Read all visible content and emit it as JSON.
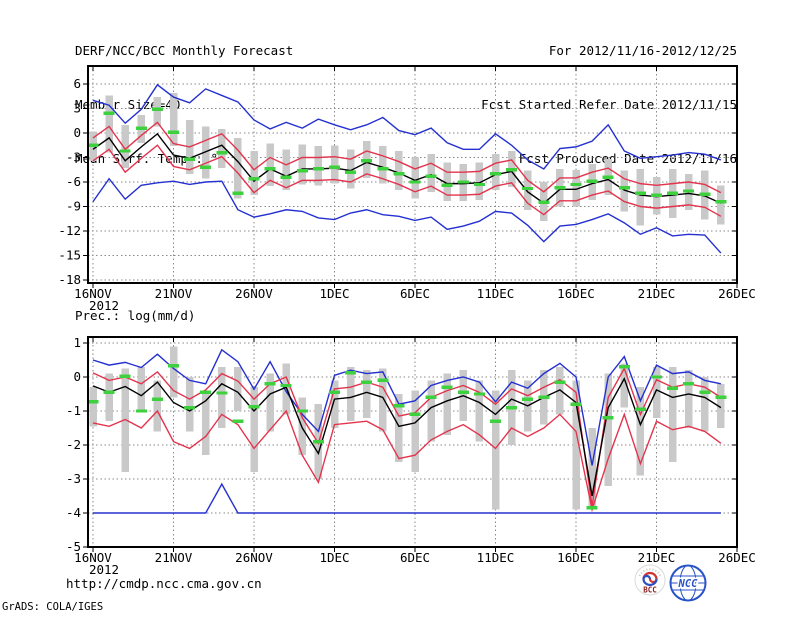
{
  "header": {
    "left": [
      "DERF/NCC/BCC Monthly Forecast",
      "Member Size=40",
      "Mean Surf. Temp.: °C"
    ],
    "right": [
      "For 2012/11/16-2012/12/25",
      "Fcst Started Refer Date 2012/11/15",
      "Fcst Produced Date 2012/11/16"
    ]
  },
  "footer": {
    "url": "http://cmdp.ncc.cma.gov.cn",
    "credit": "GrADS: COLA/IGES"
  },
  "logos": {
    "bcc": "BCC",
    "ncc": "NCC"
  },
  "colors": {
    "extreme_line": "#2430d0",
    "spread_line": "#e3344e",
    "mean_line": "#000000",
    "median_dash": "#3ed13e",
    "member_bar": "#c9c9c9",
    "grid": "#8a8a8a",
    "frame": "#000000"
  },
  "chart_data": [
    {
      "type": "line",
      "name": "mean-surface-temperature",
      "title": "Mean Surf. Temp.: °C",
      "x_tick_labels": [
        "16NOV",
        "21NOV",
        "26NOV",
        "1DEC",
        "6DEC",
        "11DEC",
        "16DEC",
        "21DEC",
        "26DEC"
      ],
      "x_tick_positions": [
        0,
        5,
        10,
        15,
        20,
        25,
        30,
        35,
        40
      ],
      "x_year_label": "2012",
      "n_days": 40,
      "y_ticks": [
        6,
        3,
        0,
        -3,
        -6,
        -9,
        -12,
        -15,
        -18
      ],
      "ylim": [
        -18.4,
        8.2
      ],
      "grid": true,
      "legend_position": "none",
      "series": [
        {
          "name": "ensemble-max",
          "color": "#2430d0",
          "values": [
            4.0,
            3.4,
            1.2,
            2.9,
            5.9,
            4.4,
            3.7,
            5.4,
            4.6,
            3.8,
            1.6,
            0.5,
            1.3,
            0.6,
            1.7,
            1.0,
            0.4,
            1.0,
            1.9,
            0.3,
            -0.2,
            0.6,
            -1.2,
            -2.0,
            -2.0,
            -0.1,
            -1.5,
            -3.3,
            -4.4,
            -1.9,
            -1.7,
            -1.0,
            1.0,
            -2.2,
            -3.1,
            -2.9,
            -2.7,
            -2.4,
            -2.6,
            -3.3
          ]
        },
        {
          "name": "upper-spread",
          "color": "#e3344e",
          "values": [
            -0.6,
            0.8,
            -2.0,
            -0.3,
            1.3,
            -1.3,
            -1.7,
            -0.9,
            -0.1,
            -2.1,
            -4.5,
            -3.0,
            -3.9,
            -3.0,
            -3.0,
            -2.9,
            -3.2,
            -2.2,
            -2.8,
            -3.5,
            -4.4,
            -3.7,
            -4.8,
            -4.8,
            -4.7,
            -3.7,
            -3.3,
            -5.8,
            -7.2,
            -5.5,
            -5.5,
            -4.8,
            -4.3,
            -5.6,
            -6.2,
            -6.4,
            -6.2,
            -6.0,
            -6.3,
            -7.3
          ]
        },
        {
          "name": "ensemble-mean",
          "color": "#000000",
          "values": [
            -2.0,
            -0.6,
            -3.4,
            -1.7,
            -0.1,
            -2.7,
            -3.1,
            -2.3,
            -1.5,
            -3.5,
            -5.9,
            -4.4,
            -5.3,
            -4.4,
            -4.4,
            -4.3,
            -4.6,
            -3.6,
            -4.2,
            -4.9,
            -5.8,
            -5.1,
            -6.2,
            -6.2,
            -6.1,
            -5.1,
            -4.7,
            -7.2,
            -8.6,
            -6.9,
            -6.9,
            -6.2,
            -5.7,
            -7.0,
            -7.6,
            -7.8,
            -7.6,
            -7.4,
            -7.7,
            -8.6
          ]
        },
        {
          "name": "lower-spread",
          "color": "#e3344e",
          "values": [
            -3.4,
            -2.0,
            -4.8,
            -3.1,
            -1.5,
            -4.1,
            -4.5,
            -3.7,
            -2.9,
            -4.9,
            -7.3,
            -5.8,
            -6.7,
            -5.8,
            -5.8,
            -5.7,
            -6.0,
            -5.0,
            -5.6,
            -6.3,
            -7.2,
            -6.5,
            -7.6,
            -7.6,
            -7.5,
            -6.5,
            -6.1,
            -8.6,
            -10.0,
            -8.3,
            -8.3,
            -7.6,
            -7.1,
            -8.4,
            -9.0,
            -9.2,
            -9.0,
            -8.8,
            -9.1,
            -10.2
          ]
        },
        {
          "name": "ensemble-min",
          "color": "#2430d0",
          "values": [
            -8.4,
            -5.6,
            -8.1,
            -6.4,
            -6.1,
            -5.9,
            -6.3,
            -6.0,
            -5.9,
            -9.4,
            -10.3,
            -9.9,
            -9.4,
            -9.6,
            -10.4,
            -10.6,
            -9.8,
            -9.4,
            -10.0,
            -10.2,
            -10.7,
            -10.3,
            -11.8,
            -11.4,
            -10.8,
            -9.6,
            -9.8,
            -11.3,
            -13.3,
            -11.4,
            -11.2,
            -10.6,
            -9.9,
            -11.0,
            -12.4,
            -11.6,
            -12.6,
            -12.4,
            -12.5,
            -14.7
          ]
        }
      ],
      "median_dashes": {
        "name": "member-median",
        "color": "#3ed13e",
        "values": [
          -1.5,
          2.4,
          -2.2,
          0.6,
          2.9,
          0.1,
          -3.2,
          -4.2,
          -2.4,
          -7.4,
          -5.6,
          -4.4,
          -5.4,
          -4.6,
          -4.4,
          -4.2,
          -4.8,
          -3.4,
          -4.4,
          -5.0,
          -6.0,
          -5.3,
          -6.4,
          -6.0,
          -6.3,
          -5.0,
          -4.5,
          -6.8,
          -8.5,
          -6.7,
          -6.3,
          -5.9,
          -5.4,
          -6.7,
          -7.4,
          -7.6,
          -7.4,
          -7.1,
          -7.5,
          -8.4
        ]
      },
      "spread_bars": {
        "name": "member-spread",
        "color": "#c9c9c9",
        "lo": [
          -3.4,
          -2.4,
          -4.3,
          -1.2,
          0.8,
          -1.6,
          -5.0,
          -5.6,
          -4.3,
          -8.0,
          -7.6,
          -6.5,
          -7.0,
          -6.3,
          -6.4,
          -6.2,
          -6.8,
          -5.5,
          -6.2,
          -7.0,
          -8.0,
          -7.2,
          -8.3,
          -8.3,
          -8.2,
          -7.0,
          -6.6,
          -9.4,
          -10.8,
          -9.0,
          -9.0,
          -8.2,
          -7.6,
          -9.6,
          -11.3,
          -10.0,
          -10.4,
          -9.4,
          -10.6,
          -11.2
        ],
        "hi": [
          0.2,
          4.6,
          1.0,
          2.2,
          4.4,
          4.9,
          1.6,
          0.8,
          0.5,
          -0.6,
          -2.2,
          -1.3,
          -2.0,
          -1.4,
          -1.6,
          -1.5,
          -2.0,
          -1.0,
          -1.6,
          -2.2,
          -3.0,
          -2.6,
          -3.6,
          -3.8,
          -3.6,
          -2.6,
          -2.2,
          -4.6,
          -6.0,
          -4.4,
          -4.5,
          -3.8,
          -3.2,
          -4.6,
          -4.4,
          -5.4,
          -4.4,
          -5.0,
          -4.6,
          -6.4
        ]
      }
    },
    {
      "type": "line",
      "name": "precipitation",
      "title": "Prec.: log(mm/d)",
      "x_tick_labels": [
        "16NOV",
        "21NOV",
        "26NOV",
        "1DEC",
        "6DEC",
        "11DEC",
        "16DEC",
        "21DEC",
        "26DEC"
      ],
      "x_tick_positions": [
        0,
        5,
        10,
        15,
        20,
        25,
        30,
        35,
        40
      ],
      "x_year_label": "2012",
      "n_days": 40,
      "y_ticks": [
        1,
        0,
        -1,
        -2,
        -3,
        -4,
        -5
      ],
      "ylim": [
        -5,
        1.2
      ],
      "grid": true,
      "legend_position": "none",
      "series": [
        {
          "name": "ensemble-max",
          "color": "#2430d0",
          "values": [
            0.5,
            0.35,
            0.43,
            0.28,
            0.67,
            0.25,
            -0.1,
            -0.2,
            0.8,
            0.45,
            -0.36,
            0.45,
            -0.43,
            -1.1,
            -1.6,
            0.05,
            0.2,
            0.1,
            0.15,
            -0.8,
            -0.7,
            -0.25,
            -0.1,
            0.0,
            -0.15,
            -0.73,
            -0.15,
            -0.33,
            0.1,
            0.4,
            0.0,
            -2.6,
            0.0,
            0.6,
            -0.7,
            0.35,
            0.1,
            0.15,
            -0.1,
            -0.2
          ]
        },
        {
          "name": "upper-spread",
          "color": "#e3344e",
          "values": [
            0.12,
            -0.1,
            0.0,
            -0.2,
            0.15,
            -0.4,
            -0.65,
            -0.38,
            0.1,
            -0.12,
            -0.65,
            -0.2,
            0.0,
            -1.2,
            -1.95,
            -0.35,
            -0.3,
            -0.15,
            -0.3,
            -1.15,
            -1.05,
            -0.6,
            -0.4,
            -0.25,
            -0.45,
            -0.8,
            -0.35,
            -0.55,
            -0.3,
            -0.08,
            -0.45,
            -3.8,
            -0.6,
            0.25,
            -1.1,
            -0.08,
            -0.3,
            -0.2,
            -0.3,
            -0.6
          ]
        },
        {
          "name": "ensemble-mean",
          "color": "#000000",
          "values": [
            -0.26,
            -0.45,
            -0.28,
            -0.55,
            -0.15,
            -0.75,
            -1.0,
            -0.7,
            -0.2,
            -0.45,
            -1.0,
            -0.5,
            -0.3,
            -1.5,
            -2.25,
            -0.65,
            -0.6,
            -0.45,
            -0.6,
            -1.45,
            -1.35,
            -0.9,
            -0.7,
            -0.55,
            -0.75,
            -1.1,
            -0.65,
            -0.85,
            -0.6,
            -0.38,
            -0.75,
            -3.5,
            -0.9,
            -0.05,
            -1.4,
            -0.38,
            -0.6,
            -0.5,
            -0.6,
            -0.9
          ]
        },
        {
          "name": "lower-spread",
          "color": "#e3344e",
          "values": [
            -1.35,
            -1.45,
            -1.25,
            -1.5,
            -1.0,
            -1.9,
            -2.1,
            -1.75,
            -1.1,
            -1.4,
            -2.1,
            -1.55,
            -1.0,
            -2.3,
            -3.1,
            -1.4,
            -1.35,
            -1.3,
            -1.55,
            -2.4,
            -2.3,
            -1.85,
            -1.6,
            -1.4,
            -1.7,
            -2.1,
            -1.5,
            -1.75,
            -1.5,
            -1.1,
            -1.6,
            -3.9,
            -2.4,
            -1.1,
            -2.55,
            -1.3,
            -1.55,
            -1.45,
            -1.6,
            -1.95
          ]
        },
        {
          "name": "ensemble-min",
          "color": "#2430d0",
          "values": [
            -4.0,
            -4.0,
            -4.0,
            -4.0,
            -4.0,
            -4.0,
            -4.0,
            -4.0,
            -3.15,
            -4.0,
            -4.0,
            -4.0,
            -4.0,
            -4.0,
            -4.0,
            -4.0,
            -4.0,
            -4.0,
            -4.0,
            -4.0,
            -4.0,
            -4.0,
            -4.0,
            -4.0,
            -4.0,
            -4.0,
            -4.0,
            -4.0,
            -4.0,
            -4.0,
            -4.0,
            -4.0,
            -4.0,
            -4.0,
            -4.0,
            -4.0,
            -4.0,
            -4.0,
            -4.0,
            -4.0
          ]
        }
      ],
      "median_dashes": {
        "name": "member-median",
        "color": "#3ed13e",
        "values": [
          -0.73,
          -0.45,
          0.02,
          -1.0,
          -0.65,
          0.33,
          -0.9,
          -0.45,
          -0.47,
          -1.3,
          -0.88,
          -0.2,
          -0.25,
          -1.0,
          -1.9,
          -0.45,
          0.12,
          -0.15,
          -0.1,
          -0.85,
          -1.1,
          -0.6,
          -0.3,
          -0.45,
          -0.5,
          -1.3,
          -0.9,
          -0.65,
          -0.6,
          -0.15,
          -0.8,
          -3.85,
          -1.2,
          0.3,
          -0.95,
          0.0,
          -0.33,
          -0.2,
          -0.45,
          -0.6
        ]
      },
      "spread_bars": {
        "name": "member-spread",
        "color": "#c9c9c9",
        "lo": [
          -1.45,
          -1.3,
          -2.8,
          -1.0,
          -1.6,
          -0.6,
          -1.6,
          -2.3,
          -1.5,
          -1.0,
          -2.8,
          -1.6,
          -1.1,
          -2.3,
          -3.0,
          -1.5,
          -1.3,
          -1.2,
          -1.6,
          -2.5,
          -2.8,
          -1.9,
          -1.7,
          -1.3,
          -1.9,
          -3.9,
          -2.0,
          -1.6,
          -1.4,
          -1.1,
          -3.9,
          -3.9,
          -3.2,
          -0.9,
          -2.9,
          -1.2,
          -2.5,
          -1.5,
          -1.6,
          -1.5
        ],
        "hi": [
          -0.3,
          0.1,
          0.25,
          0.3,
          -0.1,
          0.9,
          0.0,
          -0.4,
          0.3,
          0.3,
          -0.3,
          0.1,
          0.4,
          -0.6,
          -0.8,
          -0.1,
          0.3,
          0.2,
          0.25,
          -0.5,
          -0.4,
          -0.1,
          0.1,
          0.2,
          -0.1,
          -0.4,
          0.2,
          -0.1,
          0.2,
          0.3,
          -0.1,
          -1.5,
          0.1,
          0.4,
          -0.3,
          0.3,
          0.3,
          0.2,
          0.0,
          -0.2
        ]
      }
    }
  ]
}
